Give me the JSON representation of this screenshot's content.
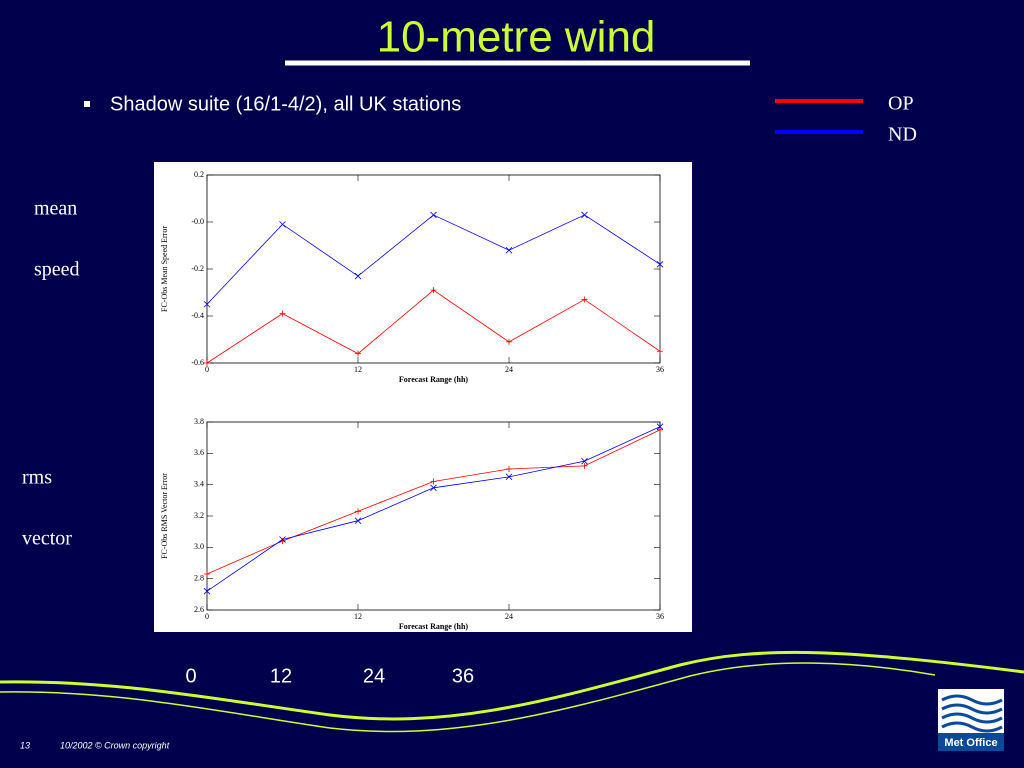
{
  "header": {
    "title": "10-metre wind",
    "bullet": "Shadow suite (16/1-4/2), all UK stations"
  },
  "side_labels": [
    "mean",
    "speed",
    "rms",
    "vector"
  ],
  "bottom_labels": [
    "0",
    "12",
    "24",
    "36"
  ],
  "footer": {
    "page": "13",
    "text": "10/2002 © Crown copyright",
    "logo": "Met Office"
  },
  "chart_data": [
    {
      "type": "line",
      "ylabel": "FC-Obs Mean Speed Error",
      "xlabel": "Forecast Range (hh)",
      "x": [
        0,
        6,
        12,
        18,
        24,
        30,
        36
      ],
      "xlim": [
        0,
        36
      ],
      "xticks": [
        0,
        12,
        24,
        36
      ],
      "ylim": [
        -0.6,
        0.2
      ],
      "yticks": [
        -0.6,
        -0.4,
        -0.2,
        {
          "value": 0,
          "label": "-0.0"
        },
        0.2
      ],
      "series": [
        {
          "name": "OP",
          "color": "#ff0000",
          "marker": "+",
          "values": [
            -0.6,
            -0.39,
            -0.56,
            -0.29,
            -0.51,
            -0.33,
            -0.55
          ]
        },
        {
          "name": "ND",
          "color": "#0000ff",
          "marker": "x",
          "values": [
            -0.35,
            -0.01,
            -0.23,
            0.03,
            -0.12,
            0.03,
            -0.18
          ]
        }
      ]
    },
    {
      "type": "line",
      "ylabel": "FC-Obs RMS Vector Error",
      "xlabel": "Forecast Range (hh)",
      "x": [
        0,
        6,
        12,
        18,
        24,
        30,
        36
      ],
      "xlim": [
        0,
        36
      ],
      "xticks": [
        0,
        12,
        24,
        36
      ],
      "ylim": [
        2.6,
        3.8
      ],
      "yticks": [
        2.6,
        2.8,
        {
          "value": 3,
          "label": "3.0"
        },
        3.2,
        3.4,
        3.6,
        3.8
      ],
      "series": [
        {
          "color": "#ff0000",
          "marker": "+",
          "values": [
            2.83,
            3.04,
            3.23,
            3.42,
            3.5,
            3.52,
            3.75
          ]
        },
        {
          "color": "#0000ff",
          "marker": "x",
          "values": [
            2.72,
            3.05,
            3.17,
            3.38,
            3.45,
            3.55,
            3.77
          ]
        }
      ]
    }
  ]
}
